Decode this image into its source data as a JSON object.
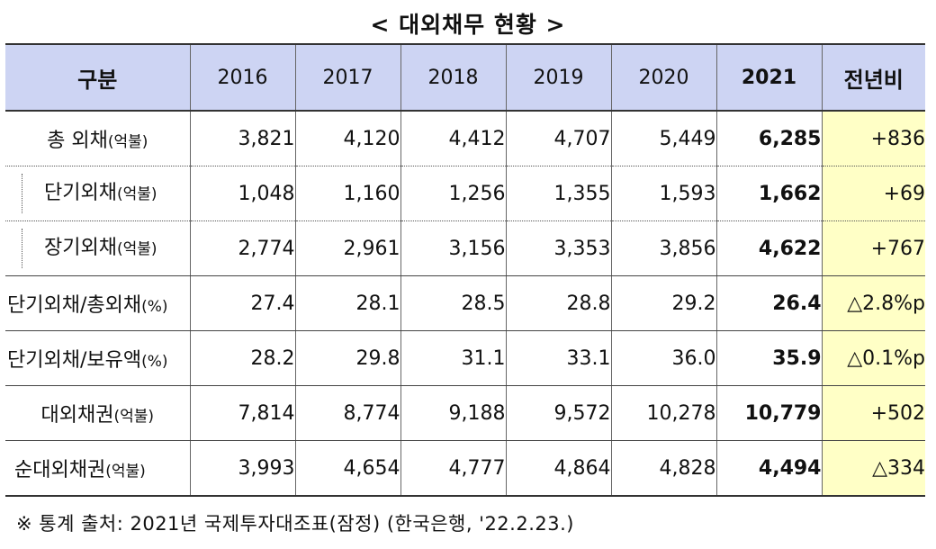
{
  "title": "< 대외채무 현황 >",
  "table": {
    "headers": [
      "구분",
      "2016",
      "2017",
      "2018",
      "2019",
      "2020",
      "2021",
      "전년비"
    ],
    "rows": [
      {
        "label": "총 외채",
        "unit": "(억불)",
        "values": [
          "3,821",
          "4,120",
          "4,412",
          "4,707",
          "5,449",
          "6,285"
        ],
        "change": "+836"
      },
      {
        "label": "단기외채",
        "unit": "(억불)",
        "values": [
          "1,048",
          "1,160",
          "1,256",
          "1,355",
          "1,593",
          "1,662"
        ],
        "change": "+69"
      },
      {
        "label": "장기외채",
        "unit": "(억불)",
        "values": [
          "2,774",
          "2,961",
          "3,156",
          "3,353",
          "3,856",
          "4,622"
        ],
        "change": "+767"
      },
      {
        "label": "단기외채/총외채",
        "unit": "(%)",
        "values": [
          "27.4",
          "28.1",
          "28.5",
          "28.8",
          "29.2",
          "26.4"
        ],
        "change": "△2.8%p"
      },
      {
        "label": "단기외채/보유액",
        "unit": "(%)",
        "values": [
          "28.2",
          "29.8",
          "31.1",
          "33.1",
          "36.0",
          "35.9"
        ],
        "change": "△0.1%p"
      },
      {
        "label": "대외채권",
        "unit": "(억불)",
        "values": [
          "7,814",
          "8,774",
          "9,188",
          "9,572",
          "10,278",
          "10,779"
        ],
        "change": "+502"
      },
      {
        "label": "순대외채권",
        "unit": "(억불)",
        "values": [
          "3,993",
          "4,654",
          "4,777",
          "4,864",
          "4,828",
          "4,494"
        ],
        "change": "△334"
      }
    ]
  },
  "footnote": "※ 통계 출처: 2021년 국제투자대조표(잠정) (한국은행, '22.2.23.)",
  "colors": {
    "header_bg": "#cdd4f3",
    "change_col_bg": "#ffffc6"
  }
}
